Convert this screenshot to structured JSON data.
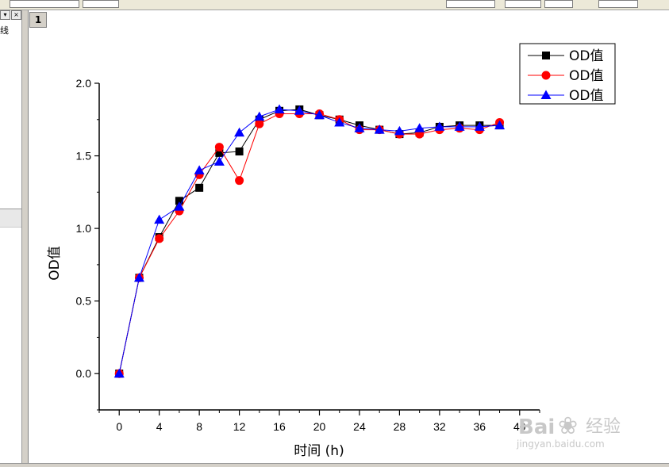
{
  "window": {
    "layer_label": "1",
    "panel_label": "线"
  },
  "chart_data": {
    "type": "line",
    "title": "",
    "xlabel": "时间 (h)",
    "ylabel": "OD值",
    "xlim": [
      -2,
      42
    ],
    "ylim": [
      -0.25,
      2.0
    ],
    "x_ticks": [
      0,
      4,
      8,
      12,
      16,
      20,
      24,
      28,
      32,
      36,
      40
    ],
    "y_ticks": [
      0.0,
      0.5,
      1.0,
      1.5,
      2.0
    ],
    "x_tick_labels": [
      "0",
      "4",
      "8",
      "12",
      "16",
      "20",
      "24",
      "28",
      "32",
      "36",
      "40"
    ],
    "y_tick_labels": [
      "0.0",
      "0.5",
      "1.0",
      "1.5",
      "2.0"
    ],
    "grid": false,
    "legend_position": "top-right",
    "x": [
      0,
      2,
      4,
      6,
      8,
      10,
      12,
      14,
      16,
      18,
      20,
      22,
      24,
      26,
      28,
      30,
      32,
      34,
      36,
      38
    ],
    "series": [
      {
        "name": "OD值",
        "color": "#000000",
        "marker": "square",
        "values": [
          0.0,
          0.66,
          0.94,
          1.19,
          1.28,
          1.52,
          1.53,
          1.75,
          1.81,
          1.82,
          1.78,
          1.75,
          1.71,
          1.68,
          1.65,
          1.66,
          1.7,
          1.71,
          1.71,
          1.71
        ]
      },
      {
        "name": "OD值",
        "color": "#ff0000",
        "marker": "circle",
        "values": [
          0.0,
          0.66,
          0.93,
          1.12,
          1.37,
          1.56,
          1.33,
          1.72,
          1.79,
          1.79,
          1.79,
          1.75,
          1.68,
          1.68,
          1.65,
          1.65,
          1.68,
          1.69,
          1.68,
          1.73
        ]
      },
      {
        "name": "OD值",
        "color": "#0000ff",
        "marker": "triangle",
        "values": [
          0.0,
          0.66,
          1.06,
          1.15,
          1.4,
          1.46,
          1.66,
          1.77,
          1.82,
          1.81,
          1.78,
          1.73,
          1.69,
          1.68,
          1.67,
          1.69,
          1.7,
          1.7,
          1.7,
          1.71
        ]
      }
    ]
  },
  "watermark": {
    "brand": "Bai",
    "brand2": "经验",
    "url": "jingyan.baidu.com"
  }
}
